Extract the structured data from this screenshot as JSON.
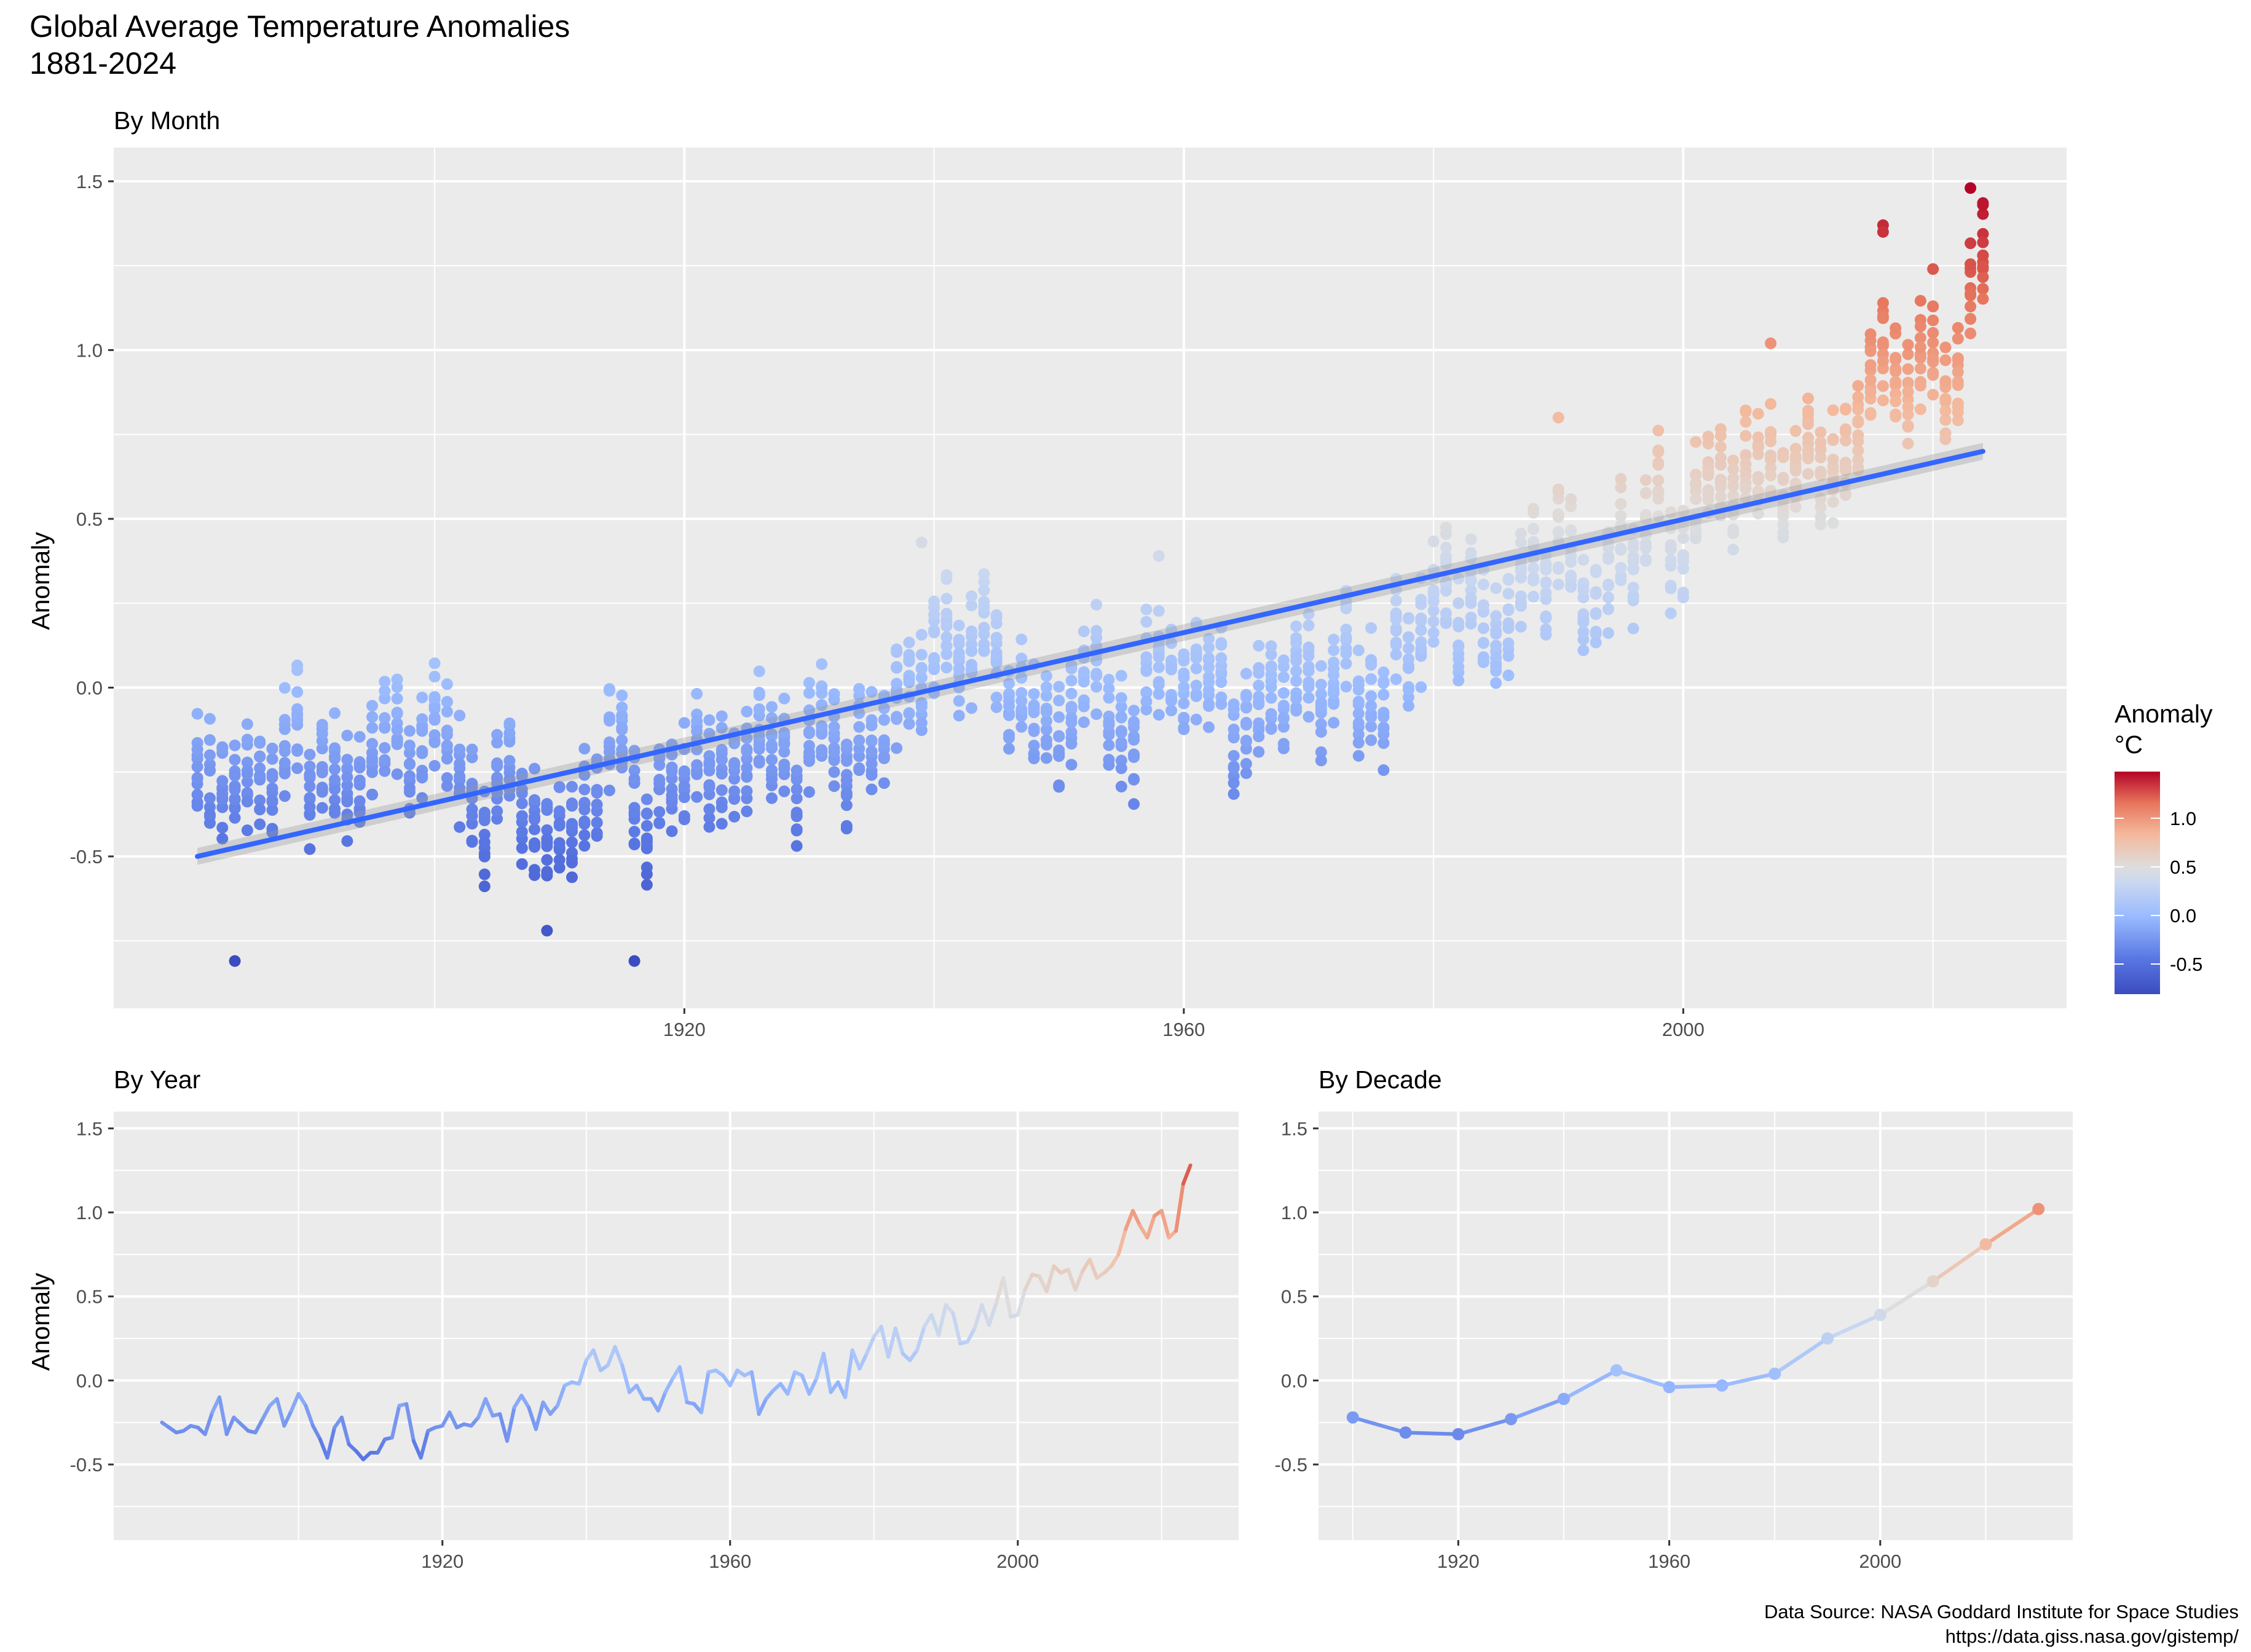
{
  "figure": {
    "title_line1": "Global Average Temperature Anomalies",
    "title_line2": "1881-2024",
    "caption_line1": "Data Source: NASA Goddard Institute for Space Studies",
    "caption_line2": "https://data.giss.nasa.gov/gistemp/",
    "legend": {
      "title_line1": "Anomaly",
      "title_line2": "°C",
      "labels": [
        "1.0",
        "0.5",
        "0.0",
        "-0.5"
      ],
      "values": [
        1.0,
        0.5,
        0.0,
        -0.5
      ],
      "range": [
        -0.81,
        1.48
      ],
      "colors": {
        "low": "#3b4cc0",
        "mid": "#dddddd",
        "high": "#b40426"
      }
    }
  },
  "chart_data": [
    {
      "type": "scatter",
      "subtitle": "By Month",
      "xlabel": "",
      "ylabel": "Anomaly",
      "xlim": [
        1874.3,
        2030.7
      ],
      "ylim": [
        -0.95,
        1.6
      ],
      "x_ticks": [
        1920,
        1960,
        2000
      ],
      "x_tick_labels": [
        "1920",
        "1960",
        "2000"
      ],
      "y_ticks": [
        -0.5,
        0.0,
        0.5,
        1.0,
        1.5
      ],
      "y_tick_labels": [
        "-0.5",
        "0.0",
        "0.5",
        "1.0",
        "1.5"
      ],
      "grid": true,
      "point_color": "anomaly",
      "trend": {
        "method": "linear",
        "x": [
          1881,
          2024
        ],
        "y": [
          -0.5,
          0.7
        ],
        "color": "#3366ff"
      },
      "annual_means": [
        [
          1881,
          -0.25
        ],
        [
          1882,
          -0.28
        ],
        [
          1883,
          -0.31
        ],
        [
          1884,
          -0.3
        ],
        [
          1885,
          -0.27
        ],
        [
          1886,
          -0.28
        ],
        [
          1887,
          -0.32
        ],
        [
          1888,
          -0.19
        ],
        [
          1889,
          -0.1
        ],
        [
          1890,
          -0.32
        ],
        [
          1891,
          -0.22
        ],
        [
          1892,
          -0.26
        ],
        [
          1893,
          -0.3
        ],
        [
          1894,
          -0.31
        ],
        [
          1895,
          -0.23
        ],
        [
          1896,
          -0.15
        ],
        [
          1897,
          -0.11
        ],
        [
          1898,
          -0.27
        ],
        [
          1899,
          -0.18
        ],
        [
          1900,
          -0.08
        ],
        [
          1901,
          -0.15
        ],
        [
          1902,
          -0.27
        ],
        [
          1903,
          -0.35
        ],
        [
          1904,
          -0.46
        ],
        [
          1905,
          -0.28
        ],
        [
          1906,
          -0.22
        ],
        [
          1907,
          -0.38
        ],
        [
          1908,
          -0.42
        ],
        [
          1909,
          -0.47
        ],
        [
          1910,
          -0.43
        ],
        [
          1911,
          -0.43
        ],
        [
          1912,
          -0.35
        ],
        [
          1913,
          -0.34
        ],
        [
          1914,
          -0.15
        ],
        [
          1915,
          -0.14
        ],
        [
          1916,
          -0.36
        ],
        [
          1917,
          -0.46
        ],
        [
          1918,
          -0.3
        ],
        [
          1919,
          -0.28
        ],
        [
          1920,
          -0.27
        ],
        [
          1921,
          -0.19
        ],
        [
          1922,
          -0.28
        ],
        [
          1923,
          -0.26
        ],
        [
          1924,
          -0.27
        ],
        [
          1925,
          -0.22
        ],
        [
          1926,
          -0.11
        ],
        [
          1927,
          -0.21
        ],
        [
          1928,
          -0.2
        ],
        [
          1929,
          -0.36
        ],
        [
          1930,
          -0.16
        ],
        [
          1931,
          -0.09
        ],
        [
          1932,
          -0.16
        ],
        [
          1933,
          -0.29
        ],
        [
          1934,
          -0.13
        ],
        [
          1935,
          -0.2
        ],
        [
          1936,
          -0.15
        ],
        [
          1937,
          -0.03
        ],
        [
          1938,
          -0.01
        ],
        [
          1939,
          -0.02
        ],
        [
          1940,
          0.12
        ],
        [
          1941,
          0.18
        ],
        [
          1942,
          0.06
        ],
        [
          1943,
          0.09
        ],
        [
          1944,
          0.2
        ],
        [
          1945,
          0.09
        ],
        [
          1946,
          -0.07
        ],
        [
          1947,
          -0.03
        ],
        [
          1948,
          -0.11
        ],
        [
          1949,
          -0.11
        ],
        [
          1950,
          -0.18
        ],
        [
          1951,
          -0.07
        ],
        [
          1952,
          0.01
        ],
        [
          1953,
          0.08
        ],
        [
          1954,
          -0.13
        ],
        [
          1955,
          -0.14
        ],
        [
          1956,
          -0.19
        ],
        [
          1957,
          0.05
        ],
        [
          1958,
          0.06
        ],
        [
          1959,
          0.03
        ],
        [
          1960,
          -0.03
        ],
        [
          1961,
          0.06
        ],
        [
          1962,
          0.03
        ],
        [
          1963,
          0.05
        ],
        [
          1964,
          -0.2
        ],
        [
          1965,
          -0.11
        ],
        [
          1966,
          -0.06
        ],
        [
          1967,
          -0.02
        ],
        [
          1968,
          -0.08
        ],
        [
          1969,
          0.05
        ],
        [
          1970,
          0.03
        ],
        [
          1971,
          -0.08
        ],
        [
          1972,
          0.01
        ],
        [
          1973,
          0.16
        ],
        [
          1974,
          -0.07
        ],
        [
          1975,
          -0.01
        ],
        [
          1976,
          -0.1
        ],
        [
          1977,
          0.18
        ],
        [
          1978,
          0.07
        ],
        [
          1979,
          0.16
        ],
        [
          1980,
          0.26
        ],
        [
          1981,
          0.32
        ],
        [
          1982,
          0.14
        ],
        [
          1983,
          0.31
        ],
        [
          1984,
          0.16
        ],
        [
          1985,
          0.12
        ],
        [
          1986,
          0.18
        ],
        [
          1987,
          0.32
        ],
        [
          1988,
          0.39
        ],
        [
          1989,
          0.27
        ],
        [
          1990,
          0.45
        ],
        [
          1991,
          0.4
        ],
        [
          1992,
          0.22
        ],
        [
          1993,
          0.23
        ],
        [
          1994,
          0.31
        ],
        [
          1995,
          0.45
        ],
        [
          1996,
          0.33
        ],
        [
          1997,
          0.46
        ],
        [
          1998,
          0.61
        ],
        [
          1999,
          0.38
        ],
        [
          2000,
          0.39
        ],
        [
          2001,
          0.54
        ],
        [
          2002,
          0.63
        ],
        [
          2003,
          0.62
        ],
        [
          2004,
          0.53
        ],
        [
          2005,
          0.68
        ],
        [
          2006,
          0.64
        ],
        [
          2007,
          0.66
        ],
        [
          2008,
          0.54
        ],
        [
          2009,
          0.65
        ],
        [
          2010,
          0.72
        ],
        [
          2011,
          0.61
        ],
        [
          2012,
          0.64
        ],
        [
          2013,
          0.68
        ],
        [
          2014,
          0.75
        ],
        [
          2015,
          0.9
        ],
        [
          2016,
          1.01
        ],
        [
          2017,
          0.92
        ],
        [
          2018,
          0.85
        ],
        [
          2019,
          0.98
        ],
        [
          2020,
          1.01
        ],
        [
          2021,
          0.85
        ],
        [
          2022,
          0.89
        ],
        [
          2023,
          1.17
        ],
        [
          2024,
          1.28
        ]
      ],
      "monthly_offsets": [
        0.04,
        -0.04,
        0.08,
        -0.08,
        0.02,
        -0.02,
        0.12,
        -0.12,
        0.06,
        -0.06,
        0.0,
        0.15
      ],
      "notable_points": [
        [
          1884,
          -0.81
        ],
        [
          1916,
          -0.81
        ],
        [
          1909,
          -0.72
        ],
        [
          1939,
          0.43
        ],
        [
          1958,
          0.39
        ],
        [
          1990,
          0.8
        ],
        [
          2007,
          1.02
        ],
        [
          2016,
          1.37
        ],
        [
          2016,
          1.35
        ],
        [
          2020,
          1.24
        ],
        [
          2023,
          1.48
        ],
        [
          2024,
          1.43
        ]
      ]
    },
    {
      "type": "line",
      "subtitle": "By Year",
      "xlabel": "",
      "ylabel": "Anomaly",
      "xlim": [
        1874.3,
        2030.7
      ],
      "ylim": [
        -0.95,
        1.6
      ],
      "x_ticks": [
        1920,
        1960,
        2000
      ],
      "x_tick_labels": [
        "1920",
        "1960",
        "2000"
      ],
      "y_ticks": [
        -0.5,
        0.0,
        0.5,
        1.0,
        1.5
      ],
      "y_tick_labels": [
        "-0.5",
        "0.0",
        "0.5",
        "1.0",
        "1.5"
      ],
      "grid": true,
      "line_color": "anomaly",
      "source": "annual_means of the By Month panel"
    },
    {
      "type": "line",
      "subtitle": "By Decade",
      "xlabel": "",
      "ylabel": "",
      "xlim": [
        1893.5,
        2036.5
      ],
      "ylim": [
        -0.95,
        1.6
      ],
      "x_ticks": [
        1920,
        1960,
        2000
      ],
      "x_tick_labels": [
        "1920",
        "1960",
        "2000"
      ],
      "y_ticks": [
        -0.5,
        0.0,
        0.5,
        1.0,
        1.5
      ],
      "y_tick_labels": [
        "-0.5",
        "0.0",
        "0.5",
        "1.0",
        "1.5"
      ],
      "grid": true,
      "markers": true,
      "line_color": "anomaly",
      "x": [
        1900,
        1910,
        1920,
        1930,
        1940,
        1950,
        1960,
        1970,
        1980,
        1990,
        2000,
        2010,
        2020,
        2030
      ],
      "y": [
        -0.22,
        -0.31,
        -0.32,
        -0.23,
        -0.11,
        0.06,
        -0.04,
        -0.03,
        0.04,
        0.25,
        0.39,
        0.59,
        0.81,
        1.02
      ]
    }
  ]
}
